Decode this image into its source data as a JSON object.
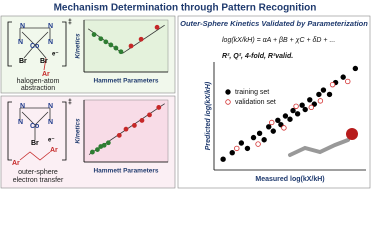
{
  "title": "Mechanism Determination through Pattern Recognition",
  "left_top": {
    "atoms": [
      "N",
      "N",
      "N",
      "N",
      "Co",
      "Br",
      "Br",
      "e⁻",
      "Ar",
      "‡"
    ],
    "label": [
      "halogen-atom",
      "abstraction"
    ]
  },
  "left_bottom": {
    "atoms": [
      "N",
      "N",
      "N",
      "N",
      "Co",
      "Br",
      "e⁻",
      "Ar",
      "Ar",
      "‡"
    ],
    "label": [
      "outer-sphere",
      "electron transfer"
    ]
  },
  "right": {
    "heading": "Outer-Sphere Kinetics Validated by Parameterization",
    "equation": "log(kX/kH) = αA + βB + χC + δD + ...",
    "metrics": "R², Q², 4-fold, R²valid."
  },
  "chart_data": [
    {
      "type": "scatter",
      "xlabel": "Hammett Parameters",
      "ylabel": "Kinetics",
      "xlim": [
        0,
        10
      ],
      "ylim": [
        0,
        10
      ],
      "series": [
        {
          "color": "#333333",
          "mode": "line",
          "x": [
            0.5,
            4.6,
            9.6
          ],
          "values": [
            8.3,
            3.6,
            9.0
          ]
        },
        {
          "color": "#2e7d32",
          "mode": "marker",
          "x": [
            1.2,
            2.0,
            2.6,
            3.2,
            3.8,
            4.4
          ],
          "values": [
            7.2,
            6.4,
            5.8,
            5.2,
            4.6,
            3.9
          ]
        },
        {
          "color": "#c62828",
          "mode": "marker",
          "x": [
            5.6,
            6.8,
            8.7
          ],
          "values": [
            5.0,
            6.3,
            8.6
          ]
        }
      ]
    },
    {
      "type": "scatter",
      "xlabel": "Hammett Parameters",
      "ylabel": "Kinetics",
      "xlim": [
        0,
        10
      ],
      "ylim": [
        0,
        10
      ],
      "series": [
        {
          "color": "#333333",
          "mode": "line",
          "x": [
            0.6,
            9.6
          ],
          "values": [
            1.2,
            9.4
          ]
        },
        {
          "color": "#2e7d32",
          "mode": "marker",
          "x": [
            1.0,
            1.6,
            2.0,
            2.4,
            2.9
          ],
          "values": [
            1.6,
            2.0,
            2.5,
            2.7,
            3.1
          ]
        },
        {
          "color": "#c62828",
          "mode": "marker",
          "x": [
            4.2,
            5.0,
            6.0,
            6.9,
            7.8,
            8.9
          ],
          "values": [
            4.3,
            5.3,
            5.9,
            6.7,
            7.6,
            8.8
          ]
        }
      ]
    },
    {
      "type": "scatter",
      "xlabel": "Measured log(kX/kH)",
      "ylabel": "Predicted log(kX/kH)",
      "xlim": [
        0,
        10
      ],
      "ylim": [
        0,
        10
      ],
      "series": [
        {
          "name": "training set",
          "color": "#000000",
          "mode": "marker",
          "marker": "filled",
          "x": [
            0.6,
            1.2,
            1.8,
            2.2,
            2.6,
            3.0,
            3.3,
            3.6,
            3.9,
            4.2,
            4.4,
            4.7,
            5.0,
            5.2,
            5.5,
            5.8,
            6.0,
            6.3,
            6.6,
            6.9,
            7.2,
            7.6,
            8.0,
            8.5,
            9.3
          ],
          "values": [
            1.0,
            1.6,
            2.5,
            2.0,
            3.0,
            3.4,
            2.8,
            4.0,
            3.6,
            4.6,
            4.2,
            5.0,
            4.7,
            5.5,
            5.2,
            6.0,
            5.6,
            6.5,
            6.1,
            7.0,
            7.4,
            7.0,
            8.1,
            8.6,
            9.4
          ]
        },
        {
          "name": "validation set",
          "color": "#d32f2f",
          "mode": "marker",
          "marker": "open",
          "x": [
            1.5,
            2.9,
            3.8,
            4.6,
            5.4,
            6.4,
            7.0,
            7.8,
            8.8
          ],
          "values": [
            2.0,
            2.4,
            4.4,
            3.9,
            5.9,
            5.8,
            6.4,
            7.9,
            8.2
          ]
        }
      ]
    }
  ]
}
